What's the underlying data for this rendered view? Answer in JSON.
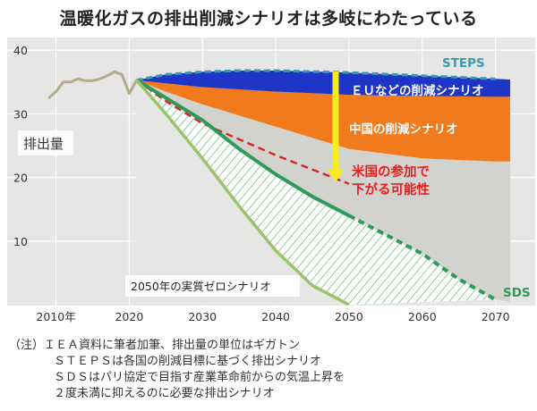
{
  "title": "温暖化ガスの排出削減シナリオは多岐にわたっている",
  "chart_data": {
    "type": "area",
    "ylabel": "排出量",
    "xlabel": "",
    "xlim": [
      2007,
      2072
    ],
    "ylim": [
      0,
      42
    ],
    "x_ticks": [
      {
        "value": 2010,
        "label": "2010年"
      },
      {
        "value": 2020,
        "label": "2020"
      },
      {
        "value": 2030,
        "label": "2030"
      },
      {
        "value": 2040,
        "label": "2040"
      },
      {
        "value": 2050,
        "label": "2050"
      },
      {
        "value": 2060,
        "label": "2060"
      },
      {
        "value": 2070,
        "label": "2070"
      }
    ],
    "y_ticks": [
      10,
      20,
      30,
      40
    ],
    "historical": {
      "x": [
        2009,
        2010,
        2011,
        2012,
        2013,
        2014,
        2015,
        2016,
        2017,
        2018,
        2019,
        2020,
        2021
      ],
      "y": [
        32.5,
        33.5,
        35,
        35,
        35.5,
        35.2,
        35.2,
        35.5,
        36,
        36.6,
        36.2,
        33.2,
        35.3
      ]
    },
    "series": [
      {
        "name": "STEPS",
        "x": [
          2021,
          2025,
          2030,
          2035,
          2040,
          2050,
          2060,
          2070
        ],
        "y": [
          35.3,
          36.2,
          36.6,
          36.8,
          36.8,
          36.5,
          36.0,
          35.5
        ],
        "color": "#3a9ab0"
      },
      {
        "name": "",
        "x": [
          2021,
          2025,
          2030,
          2040,
          2050,
          2060,
          2070
        ],
        "y": [
          35.3,
          34.8,
          34.2,
          33.5,
          33.0,
          32.8,
          32.7
        ],
        "color": "#1f35c8"
      },
      {
        "name": "",
        "x": [
          2021,
          2025,
          2030,
          2040,
          2050,
          2060,
          2070
        ],
        "y": [
          35.3,
          33.5,
          31.5,
          28.0,
          24.5,
          23.0,
          22.5
        ],
        "color": "#f07a1c"
      },
      {
        "name": "",
        "x": [
          2021,
          2025,
          2030,
          2040,
          2050
        ],
        "y": [
          35.3,
          32.0,
          28.5,
          23.5,
          19.0
        ],
        "color": "#e32020"
      },
      {
        "name": "",
        "x": [
          2021,
          2025,
          2030,
          2035,
          2040,
          2045,
          2050,
          2055,
          2060,
          2065,
          2070
        ],
        "y": [
          35.3,
          32.5,
          29.0,
          24.5,
          20.5,
          17.0,
          14.0,
          11.0,
          8.0,
          4.0,
          0.8
        ],
        "color": "#2e9a5a"
      },
      {
        "name": "",
        "x": [
          2021,
          2025,
          2030,
          2035,
          2040,
          2045,
          2050
        ],
        "y": [
          35.3,
          30.0,
          23.0,
          15.5,
          8.5,
          3.0,
          0.0
        ],
        "color": "#9ac46c"
      }
    ],
    "annotations": {
      "eu": "ＥＵなどの削減シナリオ",
      "china": "中国の削減シナリオ",
      "us_line1": "米国の参加で",
      "us_line2": "下がる可能性",
      "netzero": "2050年の実質ゼロシナリオ",
      "steps": "STEPS",
      "sds": "SDS"
    },
    "colors": {
      "steps_band": "#1f35c8",
      "orange_band": "#f07a1c",
      "plot_background": "#e6e6e4",
      "gray_area": "#d2d2cf",
      "hatch": "#5aae70",
      "arrow": "#f4ec1e",
      "us_text": "#e32020"
    }
  },
  "notes": [
    "（注）ＩＥＡ資料に筆者加筆、排出量の単位はギガトン",
    "ＳＴＥＰＳは各国の削減目標に基づく排出シナリオ",
    "ＳＤＳはパリ協定で目指す産業革命前からの気温上昇を",
    "２度未満に抑えるのに必要な排出シナリオ"
  ]
}
